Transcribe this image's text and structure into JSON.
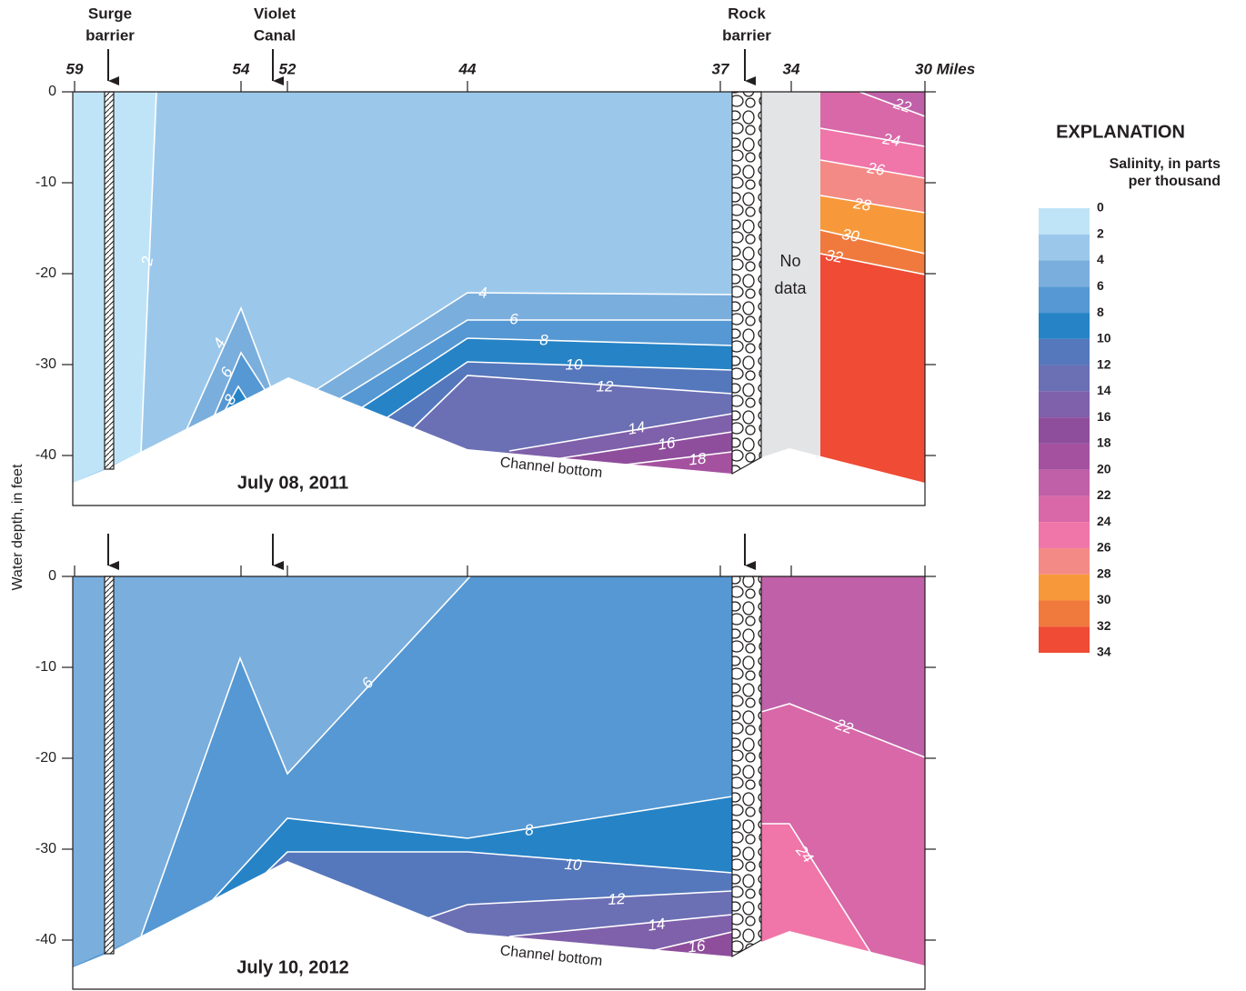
{
  "structures": [
    {
      "label": [
        "Surge",
        "barrier"
      ]
    },
    {
      "label": [
        "Violet",
        "Canal"
      ]
    },
    {
      "label": [
        "Rock",
        "barrier"
      ]
    }
  ],
  "x_axis": {
    "ticks": [
      59,
      54,
      52,
      44,
      37,
      34,
      {
        "value": 30,
        "label": "30 Miles"
      }
    ]
  },
  "y_axis": {
    "label": "Water depth, in feet",
    "ticks": [
      0,
      -10,
      -20,
      -30,
      -40
    ]
  },
  "panels": [
    {
      "date": "July 08, 2011",
      "channel_label": "Channel bottom",
      "no_data": [
        "No",
        "data"
      ],
      "contour_labels": [
        2,
        4,
        6,
        8,
        4,
        6,
        8,
        10,
        12,
        14,
        16,
        18,
        22,
        24,
        26,
        28,
        30,
        32
      ]
    },
    {
      "date": "July 10, 2012",
      "channel_label": "Channel bottom",
      "contour_labels": [
        6,
        8,
        10,
        12,
        14,
        16,
        22,
        24
      ]
    }
  ],
  "legend": {
    "title": "EXPLANATION",
    "subtitle": [
      "Salinity, in parts",
      "per thousand"
    ],
    "values": [
      0,
      2,
      4,
      6,
      8,
      10,
      12,
      14,
      16,
      18,
      20,
      22,
      24,
      26,
      28,
      30,
      32,
      34
    ],
    "colors": [
      "#bfe4f8",
      "#9bc8ea",
      "#7aaedd",
      "#5598d3",
      "#2683c6",
      "#5577bc",
      "#6b6fb4",
      "#7f60aa",
      "#8e4e9c",
      "#a4529f",
      "#c060a8",
      "#d868a8",
      "#f075a8",
      "#f48a86",
      "#f7993b",
      "#f07a3e",
      "#ef4b35"
    ]
  }
}
